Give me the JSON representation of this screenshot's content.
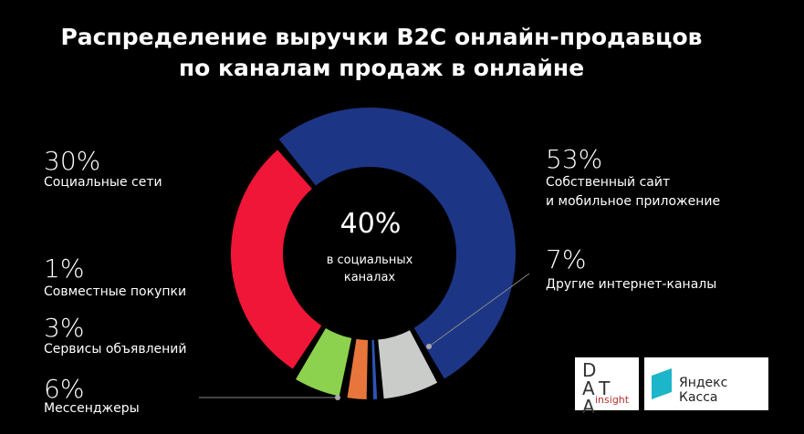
{
  "chart_data": {
    "type": "donut",
    "title": "Распределение выручки B2C онлайн-продавцов\nпо каналам продаж в онлайне",
    "categories": [
      "Собственный сайт\nи мобильное приложение",
      "Другие интернет-каналы",
      "Совместные покупки",
      "Сервисы объявлений",
      "Мессенджеры",
      "Социальные сети"
    ],
    "values": [
      53,
      7,
      1,
      3,
      6,
      30
    ],
    "value_labels": [
      "53%",
      "7%",
      "1%",
      "3%",
      "6%",
      "30%"
    ],
    "colors": [
      "#1d3585",
      "#c9ccc8",
      "#2c55b8",
      "#e8763c",
      "#8cd24e",
      "#ef1638"
    ],
    "center_value": {
      "value": 40,
      "label": "40%"
    },
    "center_text": "в социальных\nканалах",
    "logos": [
      "DATA",
      "insight",
      "Яндекс Касса"
    ]
  }
}
